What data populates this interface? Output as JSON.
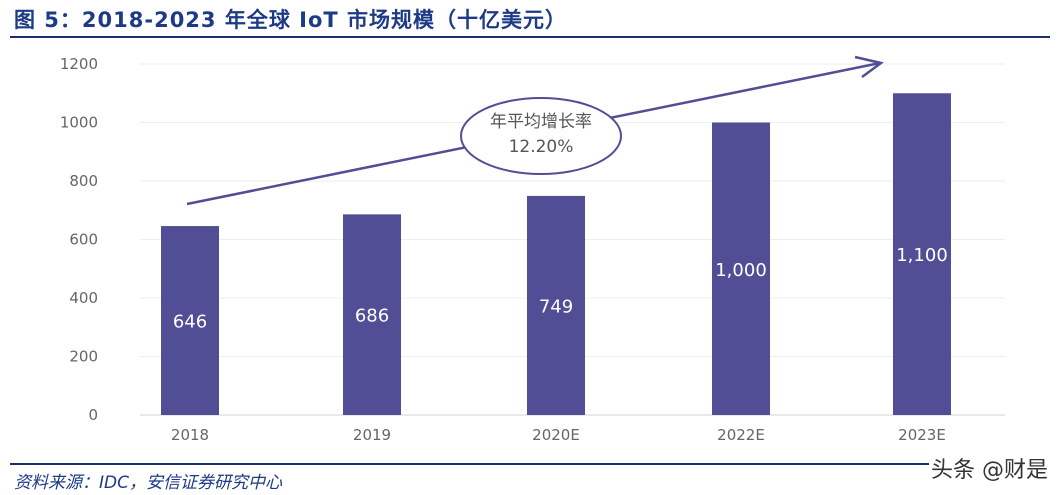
{
  "title": "图 5：2018-2023 年全球 IoT 市场规模（十亿美元）",
  "source": "资料来源：IDC，安信证券研究中心",
  "watermark": "头条 @财是",
  "chart_data": {
    "type": "bar",
    "categories": [
      "2018",
      "2019",
      "2020E",
      "2022E",
      "2023E"
    ],
    "values": [
      646,
      686,
      749,
      1000,
      1100
    ],
    "data_labels": [
      "646",
      "686",
      "749",
      "1,000",
      "1,100"
    ],
    "ylim": [
      0,
      1200
    ],
    "yticks": [
      0,
      200,
      400,
      600,
      800,
      1000,
      1200
    ],
    "grid": true,
    "bar_color": "#524e96",
    "annotation": {
      "line1": "年平均增长率",
      "line2": "12.20%"
    }
  }
}
